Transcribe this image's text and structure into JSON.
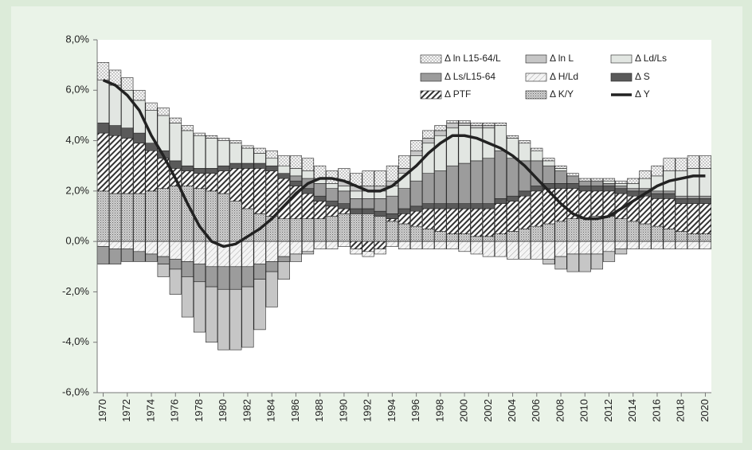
{
  "chart_data": {
    "type": "bar",
    "x": [
      1970,
      1971,
      1972,
      1973,
      1974,
      1975,
      1976,
      1977,
      1978,
      1979,
      1980,
      1981,
      1982,
      1983,
      1984,
      1985,
      1986,
      1987,
      1988,
      1989,
      1990,
      1991,
      1992,
      1993,
      1994,
      1995,
      1996,
      1997,
      1998,
      1999,
      2000,
      2001,
      2002,
      2003,
      2004,
      2005,
      2006,
      2007,
      2008,
      2009,
      2010,
      2011,
      2012,
      2013,
      2014,
      2015,
      2016,
      2017,
      2018,
      2019,
      2020
    ],
    "xlim": [
      1969.5,
      2020.5
    ],
    "xticks": [
      1970,
      1972,
      1974,
      1976,
      1978,
      1980,
      1982,
      1984,
      1986,
      1988,
      1990,
      1992,
      1994,
      1996,
      1998,
      2000,
      2002,
      2004,
      2006,
      2008,
      2010,
      2012,
      2014,
      2016,
      2018,
      2020
    ],
    "ylim": [
      -6,
      8
    ],
    "yticks": [
      {
        "value": -6,
        "label": "-6,0%"
      },
      {
        "value": -4,
        "label": "-4,0%"
      },
      {
        "value": -2,
        "label": "-2,0%"
      },
      {
        "value": 0,
        "label": "0,0%"
      },
      {
        "value": 2,
        "label": "2,0%"
      },
      {
        "value": 4,
        "label": "4,0%"
      },
      {
        "value": 6,
        "label": "6,0%"
      },
      {
        "value": 8,
        "label": "8,0%"
      }
    ],
    "grid": false,
    "legend": "top-right",
    "series": [
      {
        "name": "Δ ln L15-64/L",
        "color": "#f4f4f4",
        "pattern": "dots",
        "values": [
          0.7,
          0.6,
          0.5,
          0.4,
          0.3,
          0.3,
          0.2,
          0.2,
          0.1,
          0.1,
          0.1,
          0.1,
          0.1,
          0.2,
          0.3,
          0.4,
          0.5,
          0.5,
          0.5,
          0.5,
          0.5,
          0.5,
          0.6,
          0.6,
          0.6,
          0.5,
          0.4,
          0.3,
          0.2,
          0.1,
          0.1,
          0.1,
          0.1,
          0.1,
          0.1,
          0.1,
          0.1,
          0.1,
          0.1,
          0.1,
          0.1,
          0.1,
          0.1,
          0.1,
          0.2,
          0.3,
          0.4,
          0.5,
          0.5,
          0.5,
          0.5
        ]
      },
      {
        "name": "Δ ln L",
        "color": "#c6c6c6",
        "values": [
          0,
          0,
          0,
          0,
          0,
          -0.5,
          -1.0,
          -1.6,
          -2.0,
          -2.2,
          -2.4,
          -2.4,
          -2.4,
          -2.0,
          -1.4,
          -0.7,
          -0.3,
          -0.1,
          0,
          0,
          0.2,
          0.2,
          0.2,
          0.2,
          0.2,
          0.2,
          0.2,
          0.2,
          0.2,
          0.2,
          0.1,
          0.1,
          0.1,
          0,
          0,
          0,
          0,
          -0.2,
          -0.5,
          -0.7,
          -0.7,
          -0.6,
          -0.4,
          -0.2,
          0,
          0,
          0,
          0,
          0,
          0,
          0
        ]
      },
      {
        "name": "Δ Ld/Ls",
        "color": "#e2e6e2",
        "values": [
          1.7,
          1.6,
          1.5,
          1.3,
          1.3,
          1.4,
          1.5,
          1.4,
          1.3,
          1.2,
          1.0,
          0.8,
          0.6,
          0.4,
          0.3,
          0.3,
          0.3,
          0.3,
          0.2,
          0.2,
          0.2,
          0.3,
          0.3,
          0.3,
          0.4,
          0.6,
          1.0,
          1.2,
          1.4,
          1.5,
          1.5,
          1.3,
          1.2,
          1.0,
          0.8,
          0.7,
          0.4,
          0.2,
          0.1,
          0,
          0,
          0,
          0.1,
          0.1,
          0.2,
          0.4,
          0.6,
          0.8,
          1.0,
          1.1,
          1.1
        ]
      },
      {
        "name": "Δ Ls/L15-64",
        "color": "#9c9c9c",
        "values": [
          -0.7,
          -0.6,
          -0.5,
          -0.4,
          -0.3,
          -0.3,
          -0.4,
          -0.6,
          -0.7,
          -0.8,
          -0.9,
          -0.9,
          -0.8,
          -0.6,
          -0.4,
          -0.2,
          0.2,
          0.4,
          0.5,
          0.5,
          0.5,
          0.4,
          0.4,
          0.5,
          0.7,
          0.8,
          1.0,
          1.2,
          1.3,
          1.5,
          1.6,
          1.7,
          1.8,
          1.9,
          1.5,
          1.2,
          1.0,
          0.7,
          0.5,
          0.3,
          0.2,
          0.2,
          0.1,
          0.1,
          0.1,
          0.1,
          0.1,
          0.1,
          0.1,
          0.1,
          0.1
        ]
      },
      {
        "name": "Δ H/Ld",
        "color": "#f0f0f0",
        "pattern": "hatch-light",
        "values": [
          -0.2,
          -0.3,
          -0.3,
          -0.4,
          -0.5,
          -0.6,
          -0.7,
          -0.8,
          -0.9,
          -1.0,
          -1.0,
          -1.0,
          -1.0,
          -0.9,
          -0.8,
          -0.6,
          -0.5,
          -0.4,
          -0.3,
          -0.3,
          -0.2,
          -0.2,
          -0.2,
          -0.2,
          -0.2,
          -0.3,
          -0.3,
          -0.3,
          -0.3,
          -0.3,
          -0.4,
          -0.5,
          -0.6,
          -0.6,
          -0.7,
          -0.7,
          -0.7,
          -0.7,
          -0.6,
          -0.5,
          -0.5,
          -0.5,
          -0.4,
          -0.3,
          -0.3,
          -0.3,
          -0.3,
          -0.3,
          -0.3,
          -0.3,
          -0.3
        ]
      },
      {
        "name": "Δ S",
        "color": "#5a5a5a",
        "values": [
          0.4,
          0.4,
          0.4,
          0.4,
          0.3,
          0.3,
          0.3,
          0.2,
          0.2,
          0.2,
          0.2,
          0.2,
          0.2,
          0.2,
          0.2,
          0.2,
          0.2,
          0.2,
          0.2,
          0.2,
          0.2,
          0.2,
          0.2,
          0.2,
          0.2,
          0.2,
          0.2,
          0.2,
          0.2,
          0.2,
          0.2,
          0.2,
          0.2,
          0.2,
          0.2,
          0.2,
          0.2,
          0.2,
          0.2,
          0.2,
          0.2,
          0.2,
          0.2,
          0.2,
          0.2,
          0.2,
          0.2,
          0.2,
          0.2,
          0.2,
          0.2
        ]
      },
      {
        "name": "Δ PTF",
        "color": "#ffffff",
        "pattern": "hatch-dark",
        "values": [
          2.3,
          2.3,
          2.2,
          2.0,
          1.6,
          1.2,
          0.7,
          0.6,
          0.6,
          0.7,
          0.9,
          1.3,
          1.6,
          1.8,
          1.8,
          1.6,
          1.3,
          1.0,
          0.7,
          0.4,
          0.2,
          -0.3,
          -0.4,
          -0.3,
          0.1,
          0.4,
          0.6,
          0.8,
          0.9,
          1.0,
          1.0,
          1.1,
          1.1,
          1.2,
          1.2,
          1.3,
          1.4,
          1.4,
          1.3,
          1.2,
          1.1,
          1.0,
          1.0,
          1.0,
          1.0,
          1.1,
          1.1,
          1.2,
          1.1,
          1.2,
          1.2
        ]
      },
      {
        "name": "Δ K/Y",
        "color": "#bdbdbd",
        "pattern": "cross",
        "values": [
          2.0,
          1.9,
          1.9,
          1.9,
          2.0,
          2.1,
          2.2,
          2.2,
          2.1,
          2.0,
          1.9,
          1.6,
          1.3,
          1.1,
          1.0,
          0.9,
          0.9,
          0.9,
          0.9,
          1.0,
          1.1,
          1.1,
          1.1,
          1.0,
          0.8,
          0.7,
          0.6,
          0.5,
          0.4,
          0.3,
          0.3,
          0.2,
          0.2,
          0.3,
          0.4,
          0.5,
          0.6,
          0.7,
          0.8,
          0.9,
          0.9,
          1.0,
          1.0,
          0.9,
          0.8,
          0.7,
          0.6,
          0.5,
          0.4,
          0.3,
          0.3
        ]
      },
      {
        "name": "Δ Y",
        "type": "line",
        "color": "#222222",
        "values": [
          6.4,
          6.2,
          5.8,
          5.2,
          4.2,
          3.4,
          2.5,
          1.5,
          0.6,
          0.0,
          -0.2,
          -0.1,
          0.2,
          0.5,
          0.9,
          1.4,
          1.9,
          2.3,
          2.5,
          2.5,
          2.4,
          2.2,
          2.0,
          2.0,
          2.2,
          2.6,
          3.0,
          3.5,
          3.9,
          4.2,
          4.2,
          4.1,
          3.9,
          3.7,
          3.4,
          3.0,
          2.5,
          2.0,
          1.5,
          1.1,
          0.9,
          0.9,
          1.0,
          1.3,
          1.6,
          1.9,
          2.2,
          2.4,
          2.5,
          2.6,
          2.6
        ]
      }
    ]
  }
}
